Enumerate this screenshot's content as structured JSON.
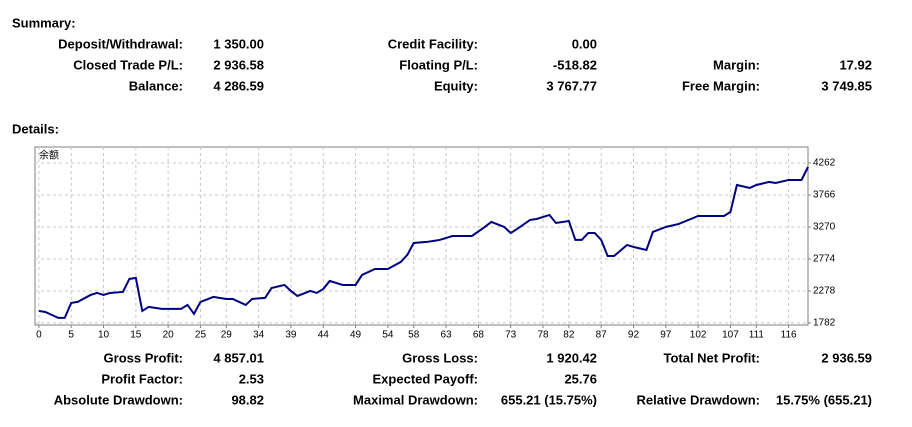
{
  "summary": {
    "title": "Summary:",
    "rows": [
      [
        {
          "label": "Deposit/Withdrawal:",
          "value": "1 350.00"
        },
        {
          "label": "Credit Facility:",
          "value": "0.00"
        }
      ],
      [
        {
          "label": "Closed Trade P/L:",
          "value": "2 936.58"
        },
        {
          "label": "Floating P/L:",
          "value": "-518.82"
        },
        {
          "label": "Margin:",
          "value": "17.92"
        }
      ],
      [
        {
          "label": "Balance:",
          "value": "4 286.59"
        },
        {
          "label": "Equity:",
          "value": "3 767.77"
        },
        {
          "label": "Free Margin:",
          "value": "3 749.85"
        }
      ]
    ]
  },
  "details_title": "Details:",
  "chart_data": {
    "type": "line",
    "title": "余额",
    "color": "#000080",
    "grid": true,
    "x": [
      0,
      1,
      3,
      4,
      5,
      6,
      8,
      9,
      10,
      11,
      13,
      14,
      15,
      16,
      17,
      19,
      22,
      23,
      24,
      25,
      27,
      29,
      30,
      32,
      33,
      35,
      36,
      38,
      39,
      40,
      42,
      43,
      44,
      45,
      47,
      49,
      50,
      52,
      54,
      56,
      57,
      58,
      60,
      61,
      62,
      64,
      67,
      69,
      70,
      72,
      73,
      74,
      76,
      77,
      79,
      80,
      82,
      83,
      84,
      85,
      86,
      87,
      88,
      89,
      91,
      92,
      94,
      95,
      97,
      99,
      102,
      106,
      107,
      108,
      110,
      111,
      113,
      114,
      116,
      118,
      119
    ],
    "values": [
      1968,
      1952,
      1860,
      1860,
      2092,
      2108,
      2216,
      2247,
      2216,
      2247,
      2262,
      2464,
      2480,
      1968,
      2030,
      2000,
      2000,
      2061,
      1922,
      2108,
      2185,
      2154,
      2154,
      2061,
      2154,
      2170,
      2324,
      2371,
      2278,
      2200,
      2278,
      2247,
      2309,
      2433,
      2371,
      2371,
      2526,
      2619,
      2619,
      2728,
      2836,
      3022,
      3038,
      3053,
      3069,
      3130,
      3130,
      3270,
      3348,
      3270,
      3177,
      3239,
      3379,
      3394,
      3456,
      3332,
      3363,
      3069,
      3069,
      3177,
      3177,
      3069,
      2820,
      2820,
      2991,
      2960,
      2914,
      3193,
      3270,
      3317,
      3441,
      3441,
      3503,
      3921,
      3875,
      3921,
      3968,
      3952,
      3999,
      3999,
      4200
    ],
    "xlim": [
      -0.6,
      119
    ],
    "ylim": [
      1750,
      4510
    ],
    "xticks": [
      0,
      5,
      10,
      15,
      20,
      25,
      29,
      34,
      39,
      44,
      49,
      54,
      58,
      63,
      68,
      73,
      78,
      82,
      87,
      92,
      97,
      102,
      107,
      111,
      116
    ],
    "yticks": [
      1782,
      2278,
      2774,
      3270,
      3766,
      4262
    ]
  },
  "stats": {
    "rows": [
      [
        {
          "label": "Gross Profit:",
          "value": "4 857.01"
        },
        {
          "label": "Gross Loss:",
          "value": "1 920.42"
        },
        {
          "label": "Total Net Profit:",
          "value": "2 936.59"
        }
      ],
      [
        {
          "label": "Profit Factor:",
          "value": "2.53"
        },
        {
          "label": "Expected Payoff:",
          "value": "25.76"
        }
      ],
      [
        {
          "label": "Absolute Drawdown:",
          "value": "98.82"
        },
        {
          "label": "Maximal Drawdown:",
          "value": "655.21 (15.75%)"
        },
        {
          "label": "Relative Drawdown:",
          "value": "15.75% (655.21)"
        }
      ]
    ]
  }
}
